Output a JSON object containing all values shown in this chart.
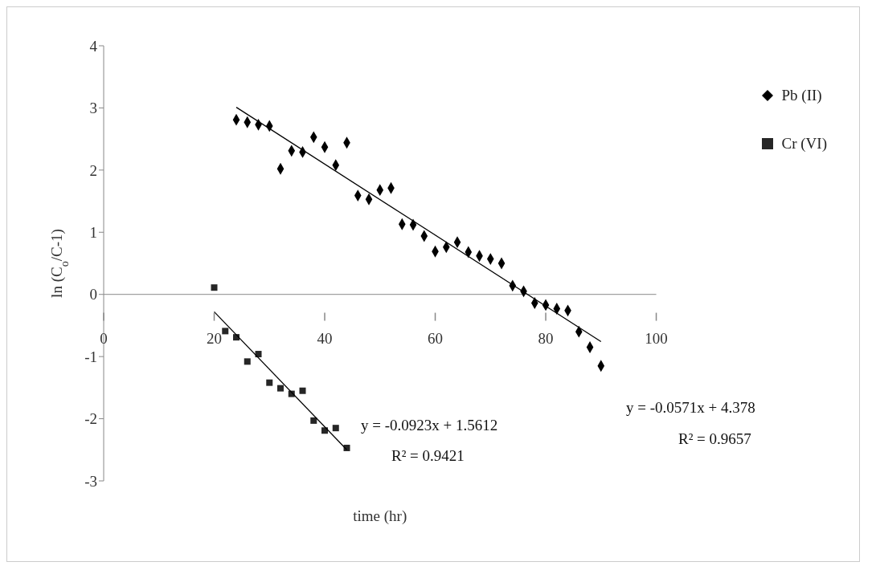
{
  "chart_data": {
    "type": "scatter",
    "xlabel": "time (hr)",
    "ylabel": "ln (C$_{o}$/C-1)",
    "xlim": [
      0,
      100
    ],
    "xticks": [
      0,
      20,
      40,
      60,
      80,
      100
    ],
    "ylim": [
      -3,
      4
    ],
    "yticks": [
      -3,
      -2,
      -1,
      0,
      1,
      2,
      3,
      4
    ],
    "grid": false,
    "legend": "right",
    "series": [
      {
        "name": "Pb (II)",
        "color": "#000000",
        "marker": "diamond",
        "x": [
          24,
          26,
          28,
          30,
          32,
          34,
          36,
          38,
          40,
          42,
          44,
          46,
          48,
          50,
          52,
          54,
          56,
          58,
          60,
          62,
          64,
          66,
          68,
          70,
          72,
          74,
          76,
          78,
          80,
          82,
          84,
          86,
          88,
          90
        ],
        "values": [
          2.81,
          2.77,
          2.73,
          2.71,
          2.02,
          2.31,
          2.29,
          2.53,
          2.37,
          2.08,
          2.44,
          1.59,
          1.53,
          1.68,
          1.71,
          1.13,
          1.12,
          0.94,
          0.69,
          0.76,
          0.84,
          0.68,
          0.62,
          0.57,
          0.5,
          0.14,
          0.05,
          -0.14,
          -0.17,
          -0.23,
          -0.26,
          -0.6,
          -0.85,
          -1.15
        ]
      },
      {
        "name": "Cr (VI)",
        "color": "#262626",
        "marker": "square",
        "x": [
          20,
          22,
          24,
          26,
          28,
          30,
          32,
          34,
          36,
          38,
          40,
          42,
          44
        ],
        "values": [
          0.11,
          -0.59,
          -0.69,
          -1.08,
          -0.96,
          -1.42,
          -1.51,
          -1.6,
          -1.55,
          -2.03,
          -2.19,
          -2.15,
          -2.47
        ]
      },
      {
        "type": "line",
        "color": "#000000",
        "marker": "none",
        "x": [
          24,
          90
        ],
        "values": [
          3.01,
          -0.76
        ]
      },
      {
        "type": "line",
        "color": "#000000",
        "marker": "none",
        "x": [
          20,
          44
        ],
        "values": [
          -0.28,
          -2.5
        ]
      }
    ],
    "annotations": [
      "y = -0.0923x + 1.5612",
      "R² = 0.9421",
      "y = -0.0571x + 4.378",
      "R² = 0.9657"
    ]
  }
}
